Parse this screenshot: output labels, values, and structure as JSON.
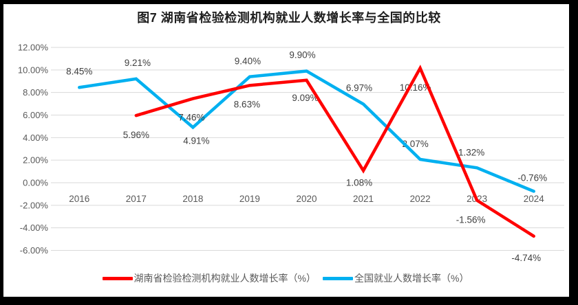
{
  "title": "图7 湖南省检验检测机构就业人数增长率与全国的比较",
  "chart_data": {
    "type": "line",
    "title": "图7 湖南省检验检测机构就业人数增长率与全国的比较",
    "categories": [
      "2016",
      "2017",
      "2018",
      "2019",
      "2020",
      "2021",
      "2022",
      "2023",
      "2024"
    ],
    "series": [
      {
        "name": "湖南省检验检测机构就业人数增长率（%）",
        "color": "#FF0000",
        "values": [
          null,
          5.96,
          7.46,
          8.63,
          9.09,
          1.08,
          10.16,
          -1.56,
          -4.74
        ],
        "data_labels": [
          null,
          "5.96%",
          "7.46%",
          "8.63%",
          "9.09%",
          "1.08%",
          "10.16%",
          "-1.56%",
          "-4.74%"
        ],
        "label_dx": [
          0,
          0,
          -2,
          -4,
          -2,
          -6,
          -7,
          -9,
          -11
        ],
        "label_dy": [
          0,
          33,
          32,
          32,
          30,
          22,
          33,
          33,
          36
        ]
      },
      {
        "name": "全国就业人数增长率（%）",
        "color": "#00B0F0",
        "values": [
          8.45,
          9.21,
          4.91,
          9.4,
          9.9,
          6.97,
          2.07,
          1.32,
          -0.76
        ],
        "data_labels": [
          "8.45%",
          "9.21%",
          "4.91%",
          "9.40%",
          "9.90%",
          "6.97%",
          "2.07%",
          "1.32%",
          "-0.76%"
        ],
        "label_dx": [
          0,
          2,
          5,
          -3,
          -6,
          -6,
          -7,
          -8,
          -2
        ],
        "label_dy": [
          -19,
          -19,
          24,
          -18,
          -19,
          -19,
          -18,
          -18,
          -15
        ]
      }
    ],
    "y_axis": {
      "min": -6,
      "max": 12,
      "step": 2,
      "tick_labels": [
        "12.00%",
        "10.00%",
        "8.00%",
        "6.00%",
        "4.00%",
        "2.00%",
        "0.00%",
        "-2.00%",
        "-4.00%",
        "-6.00%"
      ]
    },
    "grid": true,
    "legend_position": "bottom"
  },
  "colors": {
    "grid": "#D9D9D9",
    "axis_text": "#595959",
    "label_text": "#404040",
    "title_text": "#1f1f1f",
    "frame": "#000000",
    "background": "#FFFFFF"
  }
}
